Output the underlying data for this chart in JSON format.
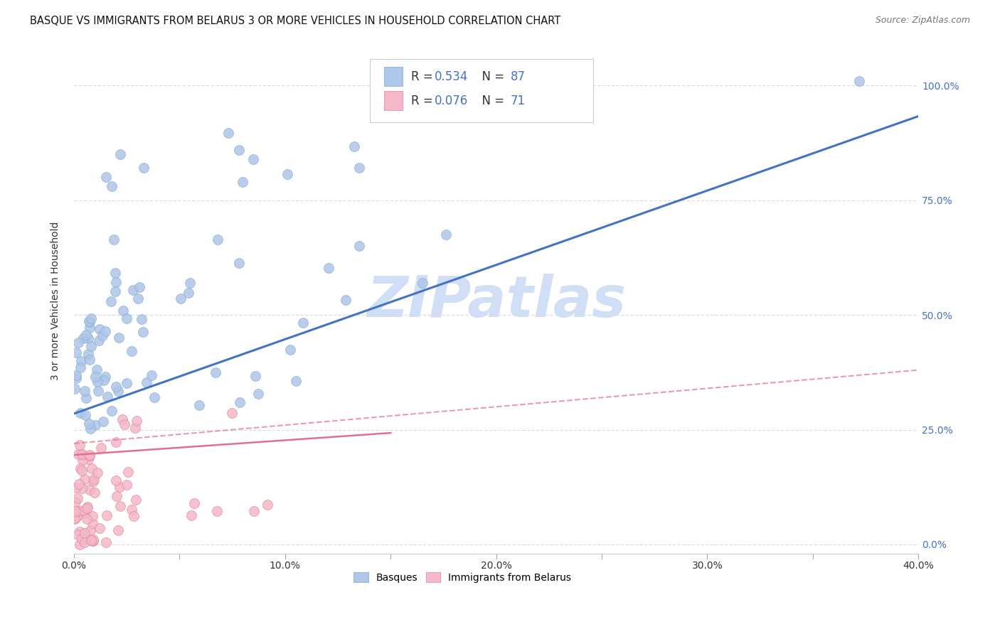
{
  "title": "BASQUE VS IMMIGRANTS FROM BELARUS 3 OR MORE VEHICLES IN HOUSEHOLD CORRELATION CHART",
  "source": "Source: ZipAtlas.com",
  "xmin": 0.0,
  "xmax": 0.4,
  "ymin": -0.02,
  "ymax": 1.08,
  "basque_color": "#aec6e8",
  "basque_edge_color": "#7aaad0",
  "basque_line_color": "#4472c4",
  "immigrant_color": "#f4b8c8",
  "immigrant_edge_color": "#e08098",
  "immigrant_line_color": "#e07090",
  "watermark_color": "#d0dff5",
  "legend_blue_text": "#4472c4",
  "legend_black_text": "#333333",
  "R_basque": 0.534,
  "N_basque": 87,
  "R_immigrant": 0.076,
  "N_immigrant": 71,
  "grid_color": "#d8dde8",
  "bg_color": "#ffffff",
  "title_fontsize": 10.5,
  "ylabel": "3 or more Vehicles in Household",
  "yticks": [
    0.0,
    0.25,
    0.5,
    0.75,
    1.0
  ],
  "xticks": [
    0.0,
    0.1,
    0.2,
    0.3,
    0.4
  ]
}
